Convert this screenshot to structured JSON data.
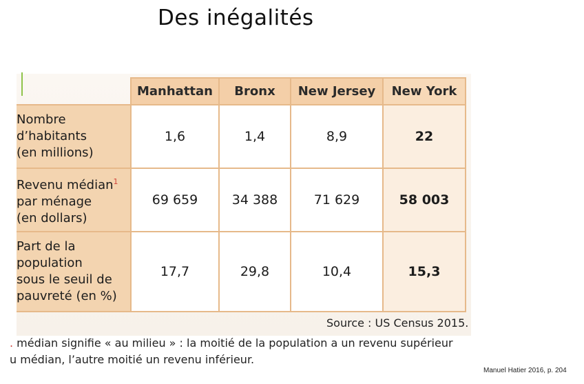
{
  "title": "Des inégalités",
  "table": {
    "columns": [
      "Manhattan",
      "Bronx",
      "New Jersey",
      "New York"
    ],
    "rows": [
      {
        "label": [
          "Nombre",
          "d’habitants",
          "(en millions)"
        ],
        "values": [
          "1,6",
          "1,4",
          "8,9",
          "22"
        ]
      },
      {
        "label": [
          "Revenu médian",
          "par ménage",
          "(en dollars)"
        ],
        "note_marker": "1",
        "values": [
          "69 659",
          "34 388",
          "71 629",
          "58 003"
        ]
      },
      {
        "label": [
          "Part de la",
          "population",
          "sous le seuil de",
          "pauvreté (en %)"
        ],
        "values": [
          "17,7",
          "29,8",
          "10,4",
          "15,3"
        ]
      }
    ]
  },
  "source": "Source : US Census 2015.",
  "footnote": {
    "marker": ".",
    "line1": " médian signifie « au milieu » : la moitié de la population a un revenu supérieur",
    "line2": "u médian, l’autre moitié un revenu inférieur."
  },
  "credit": "Manuel Hatier 2016, p. 204",
  "colors": {
    "header": "#f4cfa8",
    "row_label": "#f3d4b0",
    "border": "#e6b98a",
    "accent": "#d0433a"
  }
}
